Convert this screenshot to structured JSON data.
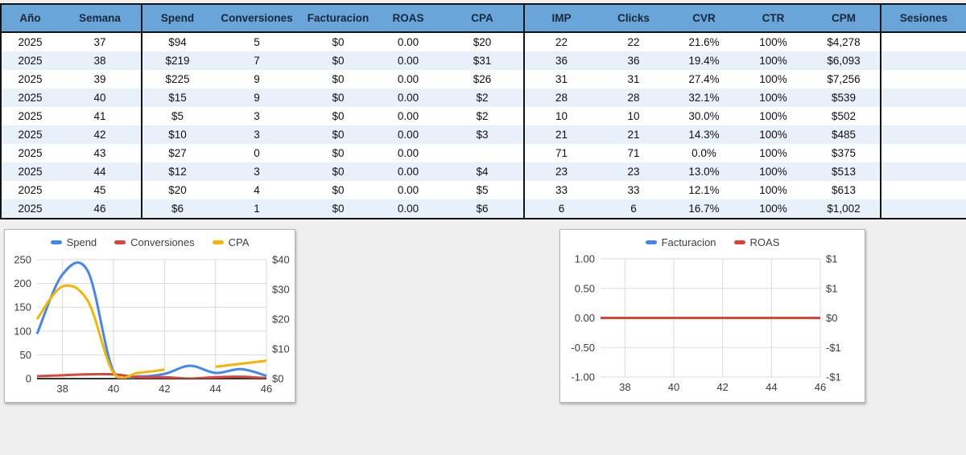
{
  "colors": {
    "header_bg": "#6aa5da",
    "header_text": "#16283a",
    "row_alt_bg": "#e8f0fa",
    "table_border": "#141414",
    "page_bg": "#efefef",
    "series_blue": "#4285f4",
    "series_red": "#db4437",
    "series_yellow": "#f4b400",
    "gridline": "#dadada",
    "axis_baseline": "#333333",
    "tick_text": "#3b3b3b"
  },
  "table": {
    "columns": [
      "Año",
      "Semana",
      "Spend",
      "Conversiones",
      "Facturacion",
      "ROAS",
      "CPA",
      "IMP",
      "Clicks",
      "CVR",
      "CTR",
      "CPM",
      "Sesiones"
    ],
    "rows": [
      [
        "2025",
        "37",
        "$94",
        "5",
        "$0",
        "0.00",
        "$20",
        "22",
        "22",
        "21.6%",
        "100%",
        "$4,278",
        ""
      ],
      [
        "2025",
        "38",
        "$219",
        "7",
        "$0",
        "0.00",
        "$31",
        "36",
        "36",
        "19.4%",
        "100%",
        "$6,093",
        ""
      ],
      [
        "2025",
        "39",
        "$225",
        "9",
        "$0",
        "0.00",
        "$26",
        "31",
        "31",
        "27.4%",
        "100%",
        "$7,256",
        ""
      ],
      [
        "2025",
        "40",
        "$15",
        "9",
        "$0",
        "0.00",
        "$2",
        "28",
        "28",
        "32.1%",
        "100%",
        "$539",
        ""
      ],
      [
        "2025",
        "41",
        "$5",
        "3",
        "$0",
        "0.00",
        "$2",
        "10",
        "10",
        "30.0%",
        "100%",
        "$502",
        ""
      ],
      [
        "2025",
        "42",
        "$10",
        "3",
        "$0",
        "0.00",
        "$3",
        "21",
        "21",
        "14.3%",
        "100%",
        "$485",
        ""
      ],
      [
        "2025",
        "43",
        "$27",
        "0",
        "$0",
        "0.00",
        "",
        "71",
        "71",
        "0.0%",
        "100%",
        "$375",
        ""
      ],
      [
        "2025",
        "44",
        "$12",
        "3",
        "$0",
        "0.00",
        "$4",
        "23",
        "23",
        "13.0%",
        "100%",
        "$513",
        ""
      ],
      [
        "2025",
        "45",
        "$20",
        "4",
        "$0",
        "0.00",
        "$5",
        "33",
        "33",
        "12.1%",
        "100%",
        "$613",
        ""
      ],
      [
        "2025",
        "46",
        "$6",
        "1",
        "$0",
        "0.00",
        "$6",
        "6",
        "6",
        "16.7%",
        "100%",
        "$1,002",
        ""
      ]
    ]
  },
  "chart_data": [
    {
      "type": "line",
      "title": "",
      "x": [
        37,
        38,
        39,
        40,
        41,
        42,
        43,
        44,
        45,
        46
      ],
      "x_ticks": [
        38,
        40,
        42,
        44,
        46
      ],
      "x_range": [
        37,
        46
      ],
      "series": [
        {
          "name": "Spend",
          "color": "#4285f4",
          "axis": "left",
          "values": [
            94,
            219,
            225,
            15,
            5,
            10,
            27,
            12,
            20,
            6
          ]
        },
        {
          "name": "Conversiones",
          "color": "#db4437",
          "axis": "left",
          "values": [
            5,
            7,
            9,
            9,
            3,
            3,
            0,
            3,
            4,
            1
          ]
        },
        {
          "name": "CPA",
          "color": "#f4b400",
          "axis": "right",
          "values": [
            20,
            31,
            26,
            2,
            2,
            3,
            null,
            4,
            5,
            6
          ]
        }
      ],
      "left_axis": {
        "min": 0,
        "max": 250,
        "ticks": [
          0,
          50,
          100,
          150,
          200,
          250
        ],
        "labels": [
          "0",
          "50",
          "100",
          "150",
          "200",
          "250"
        ]
      },
      "right_axis": {
        "min": 0,
        "max": 40,
        "ticks": [
          0,
          10,
          20,
          30,
          40
        ],
        "labels": [
          "$0",
          "$10",
          "$20",
          "$30",
          "$40"
        ]
      },
      "legend_position": "top",
      "grid": true,
      "dark_baseline": true
    },
    {
      "type": "line",
      "title": "",
      "x": [
        37,
        38,
        39,
        40,
        41,
        42,
        43,
        44,
        45,
        46
      ],
      "x_ticks": [
        38,
        40,
        42,
        44,
        46
      ],
      "x_range": [
        37,
        46
      ],
      "series": [
        {
          "name": "Facturacion",
          "color": "#4285f4",
          "axis": "left",
          "values": [
            0,
            0,
            0,
            0,
            0,
            0,
            0,
            0,
            0,
            0
          ]
        },
        {
          "name": "ROAS",
          "color": "#db4437",
          "axis": "right",
          "values": [
            0,
            0,
            0,
            0,
            0,
            0,
            0,
            0,
            0,
            0
          ]
        }
      ],
      "left_axis": {
        "min": -1,
        "max": 1,
        "ticks": [
          -1,
          -0.5,
          0,
          0.5,
          1
        ],
        "labels": [
          "-1.00",
          "-0.50",
          "0.00",
          "0.50",
          "1.00"
        ]
      },
      "right_axis": {
        "min": -1,
        "max": 1,
        "ticks": [
          -1,
          -0.5,
          0,
          0.5,
          1
        ],
        "labels": [
          "-$1",
          "-$1",
          "$0",
          "$1",
          "$1"
        ]
      },
      "legend_position": "top",
      "grid": true,
      "dark_baseline": false
    }
  ]
}
